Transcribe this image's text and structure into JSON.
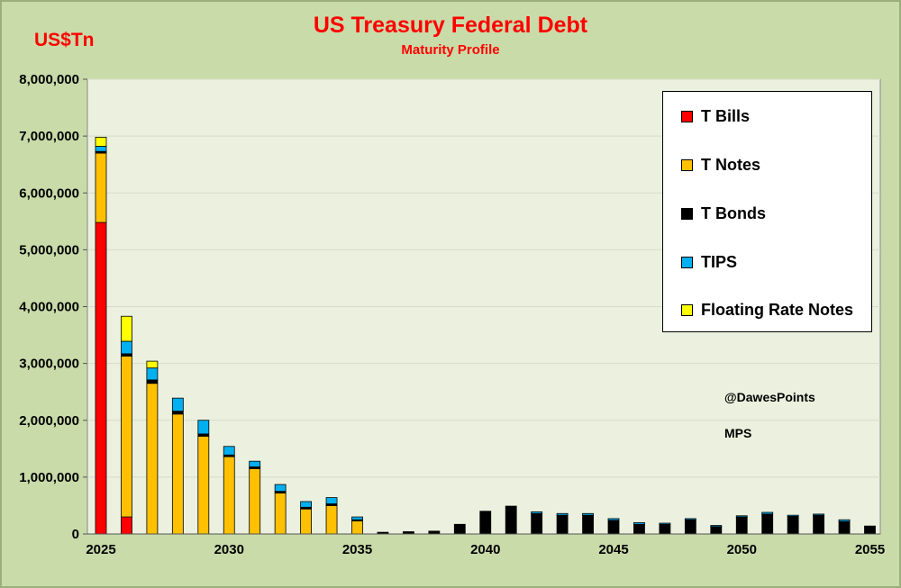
{
  "header": {
    "title": "US Treasury Federal Debt",
    "subtitle": "Maturity Profile",
    "unit_label": "US$Tn"
  },
  "notes": {
    "handle": "@DawesPoints",
    "source": "MPS"
  },
  "chart_data": {
    "type": "bar",
    "stacked": true,
    "title": "US Treasury Federal Debt",
    "subtitle": "Maturity Profile",
    "ylabel": "US$Tn",
    "ylim": [
      0,
      8000000
    ],
    "y_ticks": [
      0,
      1000000,
      2000000,
      3000000,
      4000000,
      5000000,
      6000000,
      7000000,
      8000000
    ],
    "y_tick_labels": [
      "0",
      "1,000,000",
      "2,000,000",
      "3,000,000",
      "4,000,000",
      "5,000,000",
      "6,000,000",
      "7,000,000",
      "8,000,000"
    ],
    "x_tick_labels": [
      "2025",
      "2030",
      "2035",
      "2040",
      "2045",
      "2050",
      "2055"
    ],
    "x_tick_values": [
      2025,
      2030,
      2035,
      2040,
      2045,
      2050,
      2055
    ],
    "categories": [
      2025,
      2026,
      2027,
      2028,
      2029,
      2030,
      2031,
      2032,
      2033,
      2034,
      2035,
      2036,
      2037,
      2038,
      2039,
      2040,
      2041,
      2042,
      2043,
      2044,
      2045,
      2046,
      2047,
      2048,
      2049,
      2050,
      2051,
      2052,
      2053,
      2054,
      2055
    ],
    "grid": true,
    "legend_position": "top-right",
    "series": [
      {
        "name": "T Bills",
        "color": "#ff0000",
        "values": [
          5480000,
          300000,
          0,
          0,
          0,
          0,
          0,
          0,
          0,
          0,
          0,
          0,
          0,
          0,
          0,
          0,
          0,
          0,
          0,
          0,
          0,
          0,
          0,
          0,
          0,
          0,
          0,
          0,
          0,
          0,
          0
        ]
      },
      {
        "name": "T Notes",
        "color": "#ffc000",
        "values": [
          1220000,
          2830000,
          2650000,
          2110000,
          1720000,
          1360000,
          1150000,
          720000,
          440000,
          500000,
          230000,
          0,
          0,
          0,
          0,
          0,
          0,
          0,
          0,
          0,
          0,
          0,
          0,
          0,
          0,
          0,
          0,
          0,
          0,
          0,
          0
        ]
      },
      {
        "name": "T Bonds",
        "color": "#000000",
        "values": [
          30000,
          40000,
          60000,
          50000,
          40000,
          30000,
          30000,
          30000,
          30000,
          30000,
          20000,
          30000,
          40000,
          50000,
          170000,
          400000,
          490000,
          360000,
          330000,
          330000,
          240000,
          170000,
          170000,
          250000,
          130000,
          300000,
          350000,
          310000,
          330000,
          220000,
          140000
        ]
      },
      {
        "name": "TIPS",
        "color": "#00b0f0",
        "values": [
          90000,
          220000,
          210000,
          230000,
          240000,
          150000,
          100000,
          120000,
          100000,
          110000,
          50000,
          0,
          0,
          0,
          0,
          0,
          0,
          30000,
          30000,
          30000,
          30000,
          30000,
          20000,
          20000,
          20000,
          20000,
          30000,
          20000,
          20000,
          30000,
          0
        ]
      },
      {
        "name": "Floating Rate Notes",
        "color": "#ffff00",
        "values": [
          160000,
          440000,
          120000,
          0,
          0,
          0,
          0,
          0,
          0,
          0,
          0,
          0,
          0,
          0,
          0,
          0,
          0,
          0,
          0,
          0,
          0,
          0,
          0,
          0,
          0,
          0,
          0,
          0,
          0,
          0,
          0
        ]
      }
    ]
  }
}
